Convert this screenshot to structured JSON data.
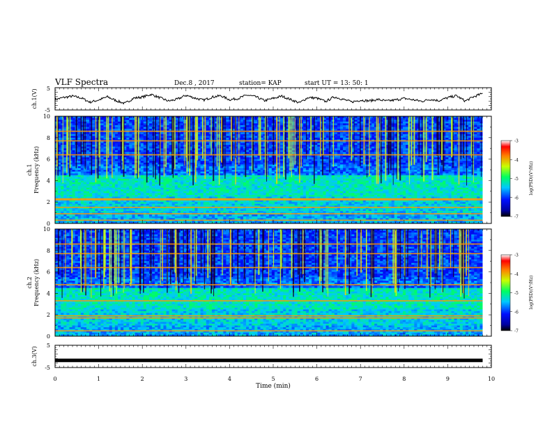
{
  "header": {
    "title": "VLF Spectra",
    "date": "Dec.8 , 2017",
    "station": "station= KAP",
    "start": "start  UT  =   13: 50: 1"
  },
  "chart_data": [
    {
      "type": "line",
      "panel": "ch1-waveform",
      "ylabel": "ch.1(V)",
      "ylim": [
        -5,
        5
      ],
      "yticks": [
        "5",
        "-5"
      ],
      "x_unit": "min",
      "x_range": [
        0,
        9.8
      ],
      "series": [
        {
          "x": [
            0,
            0.2,
            0.4,
            0.6,
            0.8,
            1.0,
            1.2,
            1.4,
            1.6,
            1.8,
            2.0,
            2.2,
            2.4,
            2.6,
            2.8,
            3.0,
            3.2,
            3.4,
            3.6,
            3.8,
            4.0,
            4.2,
            4.4,
            4.6,
            4.8,
            5.0,
            5.2,
            5.4,
            5.6,
            5.8,
            6.0,
            6.2,
            6.4,
            6.6,
            6.8,
            7.0,
            7.2,
            7.4,
            7.6,
            7.8,
            8.0,
            8.2,
            8.4,
            8.6,
            8.8,
            9.0,
            9.2,
            9.4,
            9.6,
            9.8
          ],
          "values": [
            -0.3,
            0.6,
            1.2,
            0.4,
            -1.5,
            -0.5,
            0.9,
            -0.8,
            -2.1,
            0.3,
            0.8,
            2.0,
            0.5,
            -1.0,
            -0.2,
            1.6,
            0.4,
            -0.6,
            0.8,
            1.4,
            -0.4,
            0.2,
            1.7,
            0.9,
            -0.8,
            0.2,
            1.2,
            -0.3,
            -1.8,
            0.6,
            0.3,
            -1.2,
            0.9,
            -0.2,
            -1.4,
            -0.6,
            -0.9,
            -0.3,
            -1.0,
            -0.5,
            0.2,
            -0.4,
            -1.1,
            -0.2,
            -0.8,
            0.5,
            1.4,
            -1.0,
            1.0,
            2.4
          ]
        }
      ]
    },
    {
      "type": "heatmap",
      "panel": "ch1-spectrogram",
      "ylabel": "ch.1",
      "ylabel2": "Frequency (kHz)",
      "ylim": [
        0,
        10
      ],
      "yticks": [
        "0",
        "2",
        "4",
        "6",
        "8",
        "10"
      ],
      "xlim": [
        0,
        9.8
      ],
      "colorbar": {
        "label": "log(PSD)(V²/Hz)",
        "range": [
          -7,
          -3
        ],
        "ticks": [
          "-3",
          "-4",
          "-5",
          "-6",
          "-7"
        ]
      },
      "persistent_lines_khz": [
        0.3,
        0.9,
        1.5,
        2.2,
        2.3,
        6.4,
        7.7,
        8.6
      ]
    },
    {
      "type": "heatmap",
      "panel": "ch2-spectrogram",
      "ylabel": "ch.2",
      "ylabel2": "Frequency (kHz)",
      "ylim": [
        0,
        10
      ],
      "yticks": [
        "0",
        "2",
        "4",
        "6",
        "8",
        "10"
      ],
      "xlim": [
        0,
        9.8
      ],
      "colorbar": {
        "label": "log(PSD)(V²/Hz)",
        "range": [
          -7,
          -3
        ],
        "ticks": [
          "-3",
          "-4",
          "-5",
          "-6",
          "-7"
        ]
      },
      "persistent_lines_khz": [
        0.5,
        1.7,
        1.9,
        3.3,
        4.8,
        6.4,
        7.7,
        8.6
      ]
    },
    {
      "type": "line",
      "panel": "ch3-waveform",
      "ylabel": "ch.3(V)",
      "ylim": [
        -5,
        5
      ],
      "yticks": [
        "5",
        "-5"
      ],
      "series": [
        {
          "x": [
            0,
            9.8
          ],
          "values": [
            -1.8,
            -1.8
          ]
        }
      ]
    }
  ],
  "xaxis": {
    "label": "Time (min)",
    "xlim": [
      0,
      10
    ],
    "ticks": [
      "0",
      "1",
      "2",
      "3",
      "4",
      "5",
      "6",
      "7",
      "8",
      "9",
      "10"
    ]
  },
  "colors": {
    "line": "#000000",
    "frame": "#000000"
  }
}
